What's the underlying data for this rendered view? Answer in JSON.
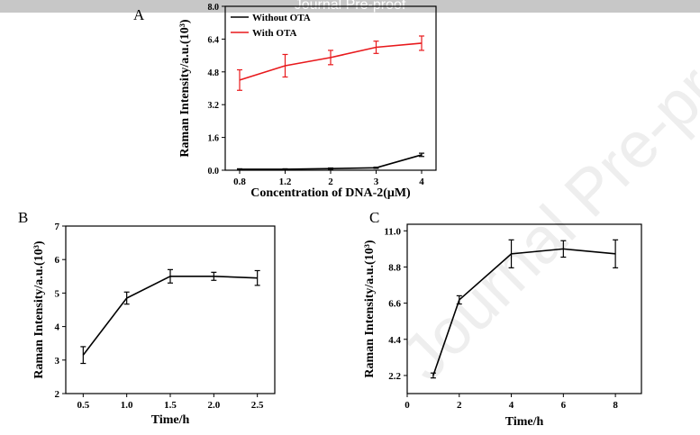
{
  "banner": {
    "text": "Journal Pre-proof"
  },
  "watermark": {
    "text": "Journal Pre-proof"
  },
  "chart_data": [
    {
      "id": "A",
      "type": "line",
      "panel_label": "A",
      "xlabel": "Concentration of DNA-2(μM)",
      "ylabel": "Raman Intensity/a.u.(10³)",
      "categories": [
        "0.8",
        "1.2",
        "2",
        "3",
        "4"
      ],
      "ylim": [
        0,
        8.0
      ],
      "yticks": [
        "0.0",
        "1.6",
        "3.2",
        "4.8",
        "6.4",
        "8.0"
      ],
      "legend_position": "top-left",
      "series": [
        {
          "name": "Without OTA",
          "color": "#000000",
          "values": [
            0.05,
            0.05,
            0.08,
            0.12,
            0.75
          ],
          "errors": [
            0.02,
            0.02,
            0.03,
            0.03,
            0.08
          ]
        },
        {
          "name": "With OTA",
          "color": "#e8191c",
          "values": [
            4.4,
            5.1,
            5.5,
            6.0,
            6.2
          ],
          "errors": [
            0.5,
            0.55,
            0.35,
            0.3,
            0.35
          ]
        }
      ]
    },
    {
      "id": "B",
      "type": "line",
      "panel_label": "B",
      "xlabel": "Time/h",
      "ylabel": "Raman Intensity/a.u.(10³)",
      "xlim": [
        0.3,
        2.7
      ],
      "xticks": [
        "0.5",
        "1.0",
        "1.5",
        "2.0",
        "2.5"
      ],
      "ylim": [
        2,
        7
      ],
      "yticks": [
        "2",
        "3",
        "4",
        "5",
        "6",
        "7"
      ],
      "series": [
        {
          "color": "#000000",
          "x": [
            0.5,
            1.0,
            1.5,
            2.0,
            2.5
          ],
          "values": [
            3.15,
            4.85,
            5.5,
            5.5,
            5.45
          ],
          "errors": [
            0.25,
            0.18,
            0.2,
            0.12,
            0.22
          ]
        }
      ]
    },
    {
      "id": "C",
      "type": "line",
      "panel_label": "C",
      "xlabel": "Time/h",
      "ylabel": "Raman Intensity/a.u.(10³)",
      "xlim": [
        0,
        9
      ],
      "xticks": [
        "0",
        "2",
        "4",
        "6",
        "8"
      ],
      "ylim": [
        1.1,
        11.4
      ],
      "yticks": [
        "2.2",
        "4.4",
        "6.6",
        "8.8",
        "11.0"
      ],
      "series": [
        {
          "color": "#000000",
          "x": [
            1,
            2,
            4,
            6,
            8
          ],
          "values": [
            2.2,
            6.8,
            9.6,
            9.9,
            9.6
          ],
          "errors": [
            0.15,
            0.25,
            0.85,
            0.5,
            0.85
          ]
        }
      ]
    }
  ]
}
